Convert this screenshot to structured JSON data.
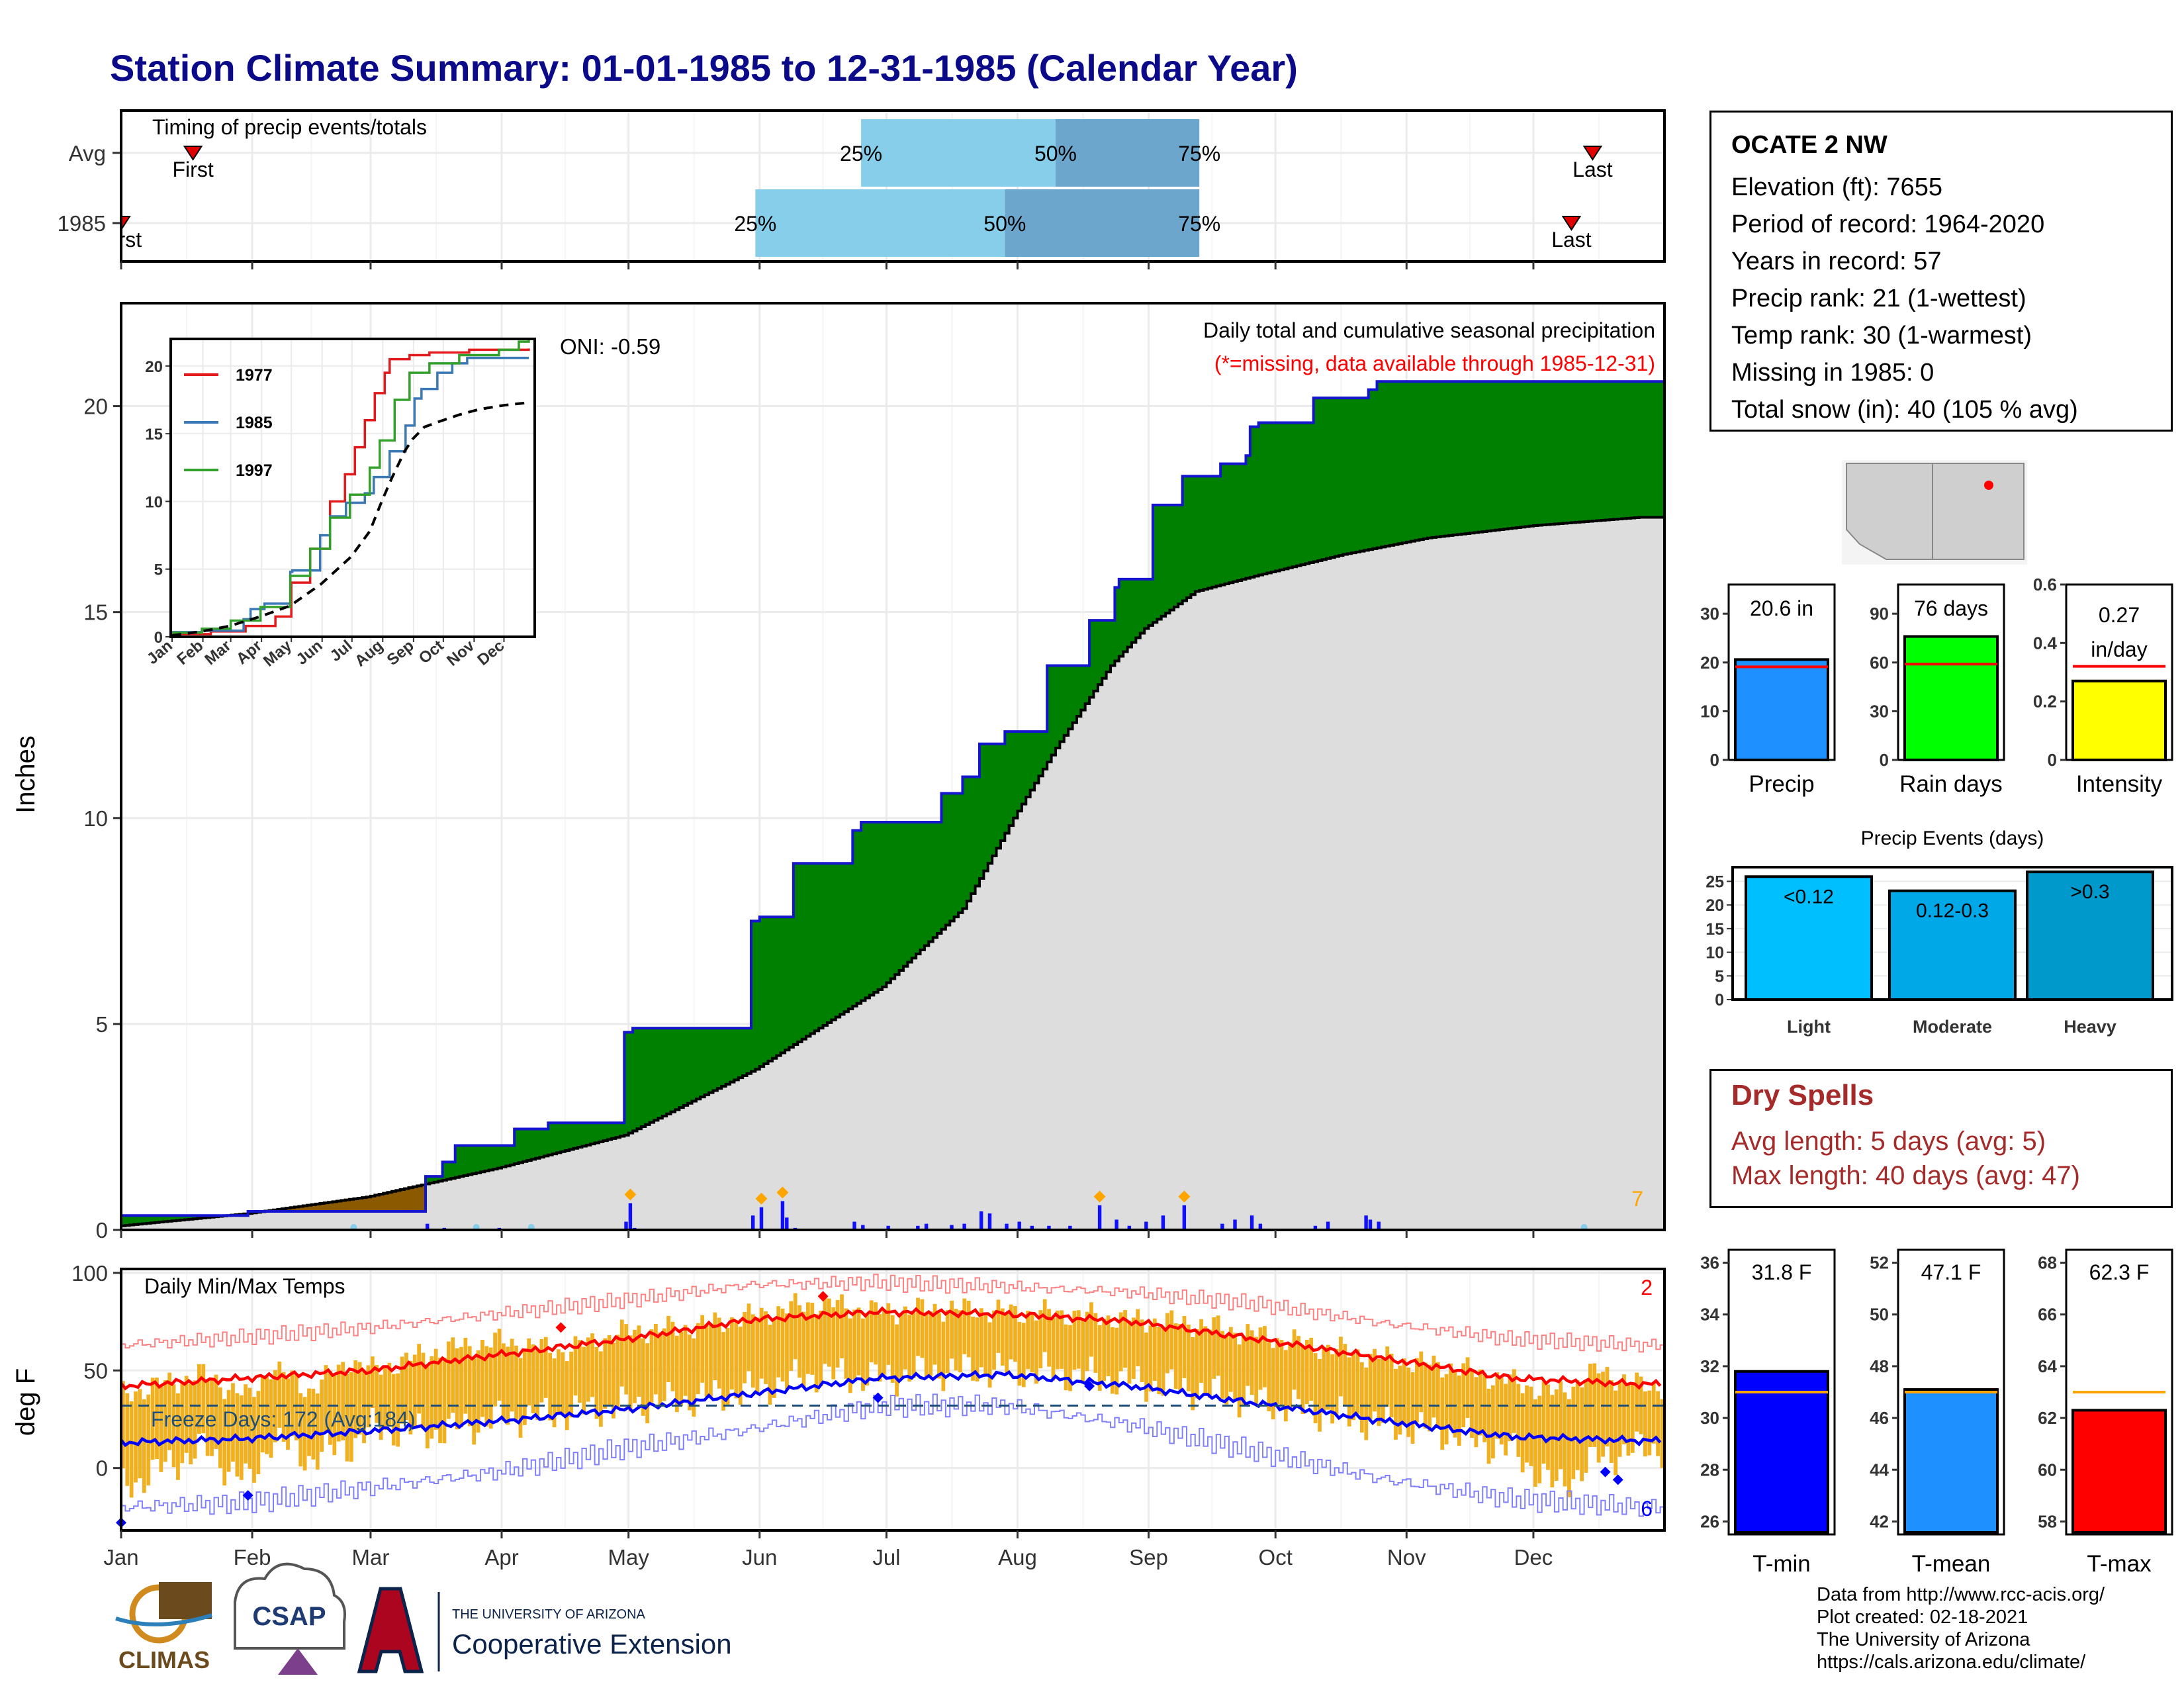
{
  "title": "Station Climate Summary: 01-01-1985 to 12-31-1985 (Calendar Year)",
  "months": [
    "Jan",
    "Feb",
    "Mar",
    "Apr",
    "May",
    "Jun",
    "Jul",
    "Aug",
    "Sep",
    "Oct",
    "Nov",
    "Dec"
  ],
  "timing": {
    "label": "Timing of precip events/totals",
    "rows": [
      {
        "name": "Avg",
        "first_doy": 18,
        "first_label": "First",
        "p25_doy": 176,
        "p50_doy": 222,
        "p75_doy": 256,
        "last_doy": 349,
        "last_label": "Last"
      },
      {
        "name": "1985",
        "first_doy": 1,
        "first_label": "First",
        "p25_doy": 151,
        "p50_doy": 210,
        "p75_doy": 256,
        "last_doy": 344,
        "last_label": "Last"
      }
    ],
    "pct_labels": [
      "25%",
      "50%",
      "75%"
    ]
  },
  "precip": {
    "title": "Daily total and cumulative seasonal precipitation",
    "subtitle": "(*=missing, data available through 1985-12-31)",
    "oni": "ONI: -0.59",
    "ylabel": "Inches",
    "yticks": [
      0,
      5,
      10,
      15,
      20
    ],
    "ylim": [
      0,
      22.5
    ],
    "corner_count": "7",
    "colors": {
      "above": "#008000",
      "below": "#8B5A00",
      "avg": "#dddddd",
      "line": "#1515d0"
    }
  },
  "chart_data": {
    "type": "area",
    "cumulative_1985": {
      "x": [
        1,
        31,
        31,
        73,
        73,
        77,
        80,
        94,
        100,
        102,
        120,
        122,
        135,
        150,
        152,
        160,
        162,
        174,
        176,
        190,
        195,
        200,
        204,
        210,
        220,
        230,
        236,
        237,
        245,
        252,
        261,
        267,
        268,
        270,
        283,
        283,
        296,
        296,
        298,
        360
      ],
      "y": [
        0.35,
        0.35,
        0.45,
        0.45,
        1.3,
        1.65,
        2.05,
        2.45,
        2.45,
        2.6,
        4.8,
        4.9,
        4.9,
        7.5,
        7.6,
        8.9,
        8.9,
        9.7,
        9.9,
        9.9,
        10.6,
        11.0,
        11.8,
        12.1,
        13.7,
        14.8,
        15.6,
        15.8,
        17.6,
        18.3,
        18.6,
        18.8,
        19.5,
        19.6,
        19.6,
        20.2,
        20.2,
        20.4,
        20.6,
        20.6
      ]
    },
    "cumulative_avg": {
      "x": [
        1,
        31,
        59,
        90,
        120,
        151,
        181,
        200,
        212,
        222,
        235,
        243,
        255,
        270,
        290,
        310,
        335,
        360
      ],
      "y": [
        0.1,
        0.4,
        0.8,
        1.5,
        2.3,
        3.9,
        5.9,
        7.8,
        10.0,
        11.7,
        13.7,
        14.6,
        15.5,
        15.9,
        16.4,
        16.8,
        17.1,
        17.3
      ]
    },
    "daily_bars": {
      "x": [
        73,
        77,
        80,
        90,
        120,
        121,
        122,
        150,
        152,
        157,
        158,
        160,
        174,
        176,
        182,
        189,
        191,
        197,
        200,
        204,
        206,
        210,
        213,
        216,
        220,
        225,
        232,
        236,
        239,
        243,
        247,
        252,
        261,
        264,
        268,
        270,
        283,
        286,
        295,
        296,
        298
      ],
      "y": [
        0.15,
        0.05,
        0.03,
        0.05,
        0.2,
        0.65,
        0.05,
        0.35,
        0.55,
        0.7,
        0.3,
        0.05,
        0.2,
        0.12,
        0.1,
        0.1,
        0.15,
        0.12,
        0.15,
        0.45,
        0.4,
        0.15,
        0.2,
        0.1,
        0.1,
        0.1,
        0.6,
        0.25,
        0.1,
        0.2,
        0.35,
        0.6,
        0.15,
        0.25,
        0.35,
        0.15,
        0.1,
        0.2,
        0.35,
        0.25,
        0.2
      ]
    },
    "inset": {
      "yticks": [
        0,
        5,
        10,
        15,
        20
      ],
      "ylim": [
        0,
        22
      ],
      "months": [
        "Jan",
        "Feb",
        "Mar",
        "Apr",
        "May",
        "Jun",
        "Jul",
        "Aug",
        "Sep",
        "Oct",
        "Nov",
        "Dec"
      ],
      "series": [
        {
          "name": "1977",
          "color": "#e31a1c",
          "x": [
            1,
            40,
            75,
            105,
            121,
            140,
            160,
            175,
            185,
            195,
            205,
            215,
            220,
            240,
            260,
            300,
            360
          ],
          "y": [
            0.2,
            0.4,
            0.8,
            1.5,
            4.0,
            6.5,
            10.0,
            12.0,
            14.0,
            16.0,
            18.0,
            19.5,
            20.5,
            20.8,
            21.0,
            21.2,
            21.3
          ]
        },
        {
          "name": "1985",
          "color": "#3a78b6",
          "x": [
            1,
            31,
            73,
            80,
            94,
            120,
            122,
            150,
            160,
            176,
            195,
            204,
            220,
            236,
            245,
            252,
            268,
            283,
            298,
            360
          ],
          "y": [
            0.35,
            0.45,
            1.3,
            2.05,
            2.45,
            4.8,
            4.9,
            7.5,
            8.9,
            9.9,
            10.6,
            11.8,
            13.7,
            15.6,
            17.6,
            18.3,
            19.5,
            20.2,
            20.6,
            20.6
          ]
        },
        {
          "name": "1997",
          "color": "#33a02c",
          "x": [
            1,
            31,
            60,
            90,
            120,
            140,
            160,
            180,
            200,
            210,
            225,
            240,
            260,
            290,
            330,
            350,
            360
          ],
          "y": [
            0.3,
            0.6,
            1.2,
            2.2,
            4.5,
            6.5,
            8.8,
            10.5,
            12.5,
            14.5,
            17.5,
            19.5,
            20.2,
            20.8,
            21.2,
            21.8,
            22.0
          ]
        },
        {
          "name": "avg",
          "color": "#000000",
          "dashed": true,
          "x": [
            1,
            31,
            59,
            90,
            120,
            151,
            181,
            200,
            212,
            222,
            235,
            243,
            255,
            270,
            290,
            310,
            335,
            360
          ],
          "y": [
            0.1,
            0.4,
            0.8,
            1.5,
            2.3,
            3.9,
            5.9,
            7.8,
            10.0,
            11.7,
            13.7,
            14.6,
            15.5,
            15.9,
            16.4,
            16.8,
            17.1,
            17.3
          ]
        }
      ]
    },
    "temps": {
      "title": "Daily Min/Max Temps",
      "ylabel": "deg F",
      "yticks": [
        0,
        50,
        100
      ],
      "ylim": [
        -32,
        102
      ],
      "freeze_text": "Freeze Days: 172 (Avg:184)",
      "freeze_line": 32,
      "count_max": "2",
      "count_min": "6",
      "avg_max": {
        "x": [
          1,
          30,
          60,
          90,
          120,
          150,
          180,
          210,
          240,
          270,
          300,
          330,
          360
        ],
        "y": [
          42,
          46,
          50,
          58,
          66,
          76,
          80,
          79,
          75,
          66,
          56,
          46,
          43
        ]
      },
      "avg_min": {
        "x": [
          1,
          30,
          60,
          90,
          120,
          150,
          180,
          210,
          240,
          270,
          300,
          330,
          360
        ],
        "y": [
          13,
          15,
          19,
          24,
          30,
          38,
          46,
          48,
          42,
          33,
          24,
          16,
          14
        ]
      },
      "rec_max": {
        "x": [
          1,
          30,
          60,
          90,
          120,
          150,
          180,
          210,
          240,
          270,
          300,
          330,
          360
        ],
        "y": [
          63,
          67,
          72,
          79,
          86,
          94,
          95,
          93,
          90,
          84,
          74,
          66,
          63
        ]
      },
      "rec_min": {
        "x": [
          1,
          30,
          60,
          90,
          120,
          150,
          180,
          210,
          240,
          270,
          300,
          330,
          360
        ],
        "y": [
          -20,
          -18,
          -10,
          -2,
          10,
          20,
          32,
          32,
          22,
          8,
          -6,
          -16,
          -20
        ]
      },
      "obs_max": {
        "x": [
          1,
          20,
          31,
          36,
          45,
          55,
          60,
          75,
          90,
          105,
          120,
          135,
          150,
          165,
          180,
          195,
          210,
          225,
          240,
          255,
          270,
          285,
          300,
          315,
          330,
          340,
          350,
          360
        ],
        "y": [
          38,
          48,
          36,
          52,
          40,
          55,
          50,
          60,
          65,
          60,
          70,
          72,
          78,
          85,
          80,
          82,
          80,
          79,
          76,
          74,
          68,
          62,
          56,
          52,
          44,
          38,
          50,
          42
        ]
      },
      "obs_min": {
        "x": [
          1,
          20,
          31,
          36,
          45,
          55,
          60,
          75,
          90,
          105,
          120,
          135,
          150,
          165,
          180,
          195,
          210,
          225,
          240,
          255,
          270,
          285,
          300,
          315,
          330,
          340,
          350,
          360
        ],
        "y": [
          -10,
          10,
          -8,
          15,
          5,
          12,
          20,
          18,
          25,
          28,
          32,
          35,
          40,
          48,
          46,
          50,
          50,
          48,
          44,
          40,
          34,
          28,
          22,
          18,
          8,
          -10,
          5,
          10
        ]
      }
    }
  },
  "station": {
    "name": "OCATE 2 NW",
    "rows": [
      "Elevation (ft): 7655",
      "Period of record: 1964-2020",
      "Years in record: 57",
      "Precip rank: 21 (1-wettest)",
      "Temp rank: 30 (1-warmest)",
      "Missing in 1985: 0",
      "Total snow (in): 40 (105 % avg)"
    ]
  },
  "mini_bars": [
    {
      "label": "Precip",
      "value": 20.6,
      "avg": 19.1,
      "text": "20.6 in",
      "yticks": [
        0,
        10,
        20,
        30
      ],
      "ylim": [
        0,
        36
      ],
      "color": "#1e90ff"
    },
    {
      "label": "Rain days",
      "value": 76,
      "avg": 59,
      "text": "76 days",
      "yticks": [
        0,
        30,
        60,
        90
      ],
      "ylim": [
        0,
        108
      ],
      "color": "#00ff00"
    },
    {
      "label": "Intensity",
      "value": 0.27,
      "avg": 0.32,
      "text": "0.27\nin/day",
      "text1": "0.27",
      "text2": "in/day",
      "yticks": [
        0.0,
        0.2,
        0.4,
        0.6
      ],
      "ylim": [
        0,
        0.6
      ],
      "color": "#ffff00"
    }
  ],
  "events": {
    "title": "Precip Events (days)",
    "yticks": [
      0,
      5,
      10,
      15,
      20,
      25
    ],
    "ylim": [
      0,
      28
    ],
    "bars": [
      {
        "label": "Light",
        "value": 26,
        "text": "<0.12",
        "color": "#00bfff"
      },
      {
        "label": "Moderate",
        "value": 23,
        "text": "0.12-0.3",
        "color": "#00a8e8"
      },
      {
        "label": "Heavy",
        "value": 27,
        "text": ">0.3",
        "color": "#0099cc"
      }
    ]
  },
  "dry_spells": {
    "title": "Dry Spells",
    "avg": "Avg length: 5 days (avg: 5)",
    "max": "Max length: 40 days (avg: 47)"
  },
  "temp_bars": [
    {
      "label": "T-min",
      "value": 31.8,
      "avg": 31.0,
      "text": "31.8 F",
      "yticks": [
        26,
        28,
        30,
        32,
        34,
        36
      ],
      "ylim": [
        25.5,
        36.5
      ],
      "color": "#0000ff"
    },
    {
      "label": "T-mean",
      "value": 47.1,
      "avg": 47.0,
      "text": "47.1 F",
      "yticks": [
        42,
        44,
        46,
        48,
        50,
        52
      ],
      "ylim": [
        41.5,
        52.5
      ],
      "color": "#1e90ff"
    },
    {
      "label": "T-max",
      "value": 62.3,
      "avg": 63.0,
      "text": "62.3 F",
      "yticks": [
        58,
        60,
        62,
        64,
        66,
        68
      ],
      "ylim": [
        57.5,
        68.5
      ],
      "color": "#ff0000"
    }
  ],
  "credits": [
    "Data from http://www.rcc-acis.org/",
    "Plot created: 02-18-2021",
    "The University of Arizona",
    "https://cals.arizona.edu/climate/"
  ],
  "logos": {
    "climas": "CLIMAS",
    "csap": "CSAP",
    "ua_small": "THE UNIVERSITY OF ARIZONA",
    "ua_big": "Cooperative Extension"
  }
}
